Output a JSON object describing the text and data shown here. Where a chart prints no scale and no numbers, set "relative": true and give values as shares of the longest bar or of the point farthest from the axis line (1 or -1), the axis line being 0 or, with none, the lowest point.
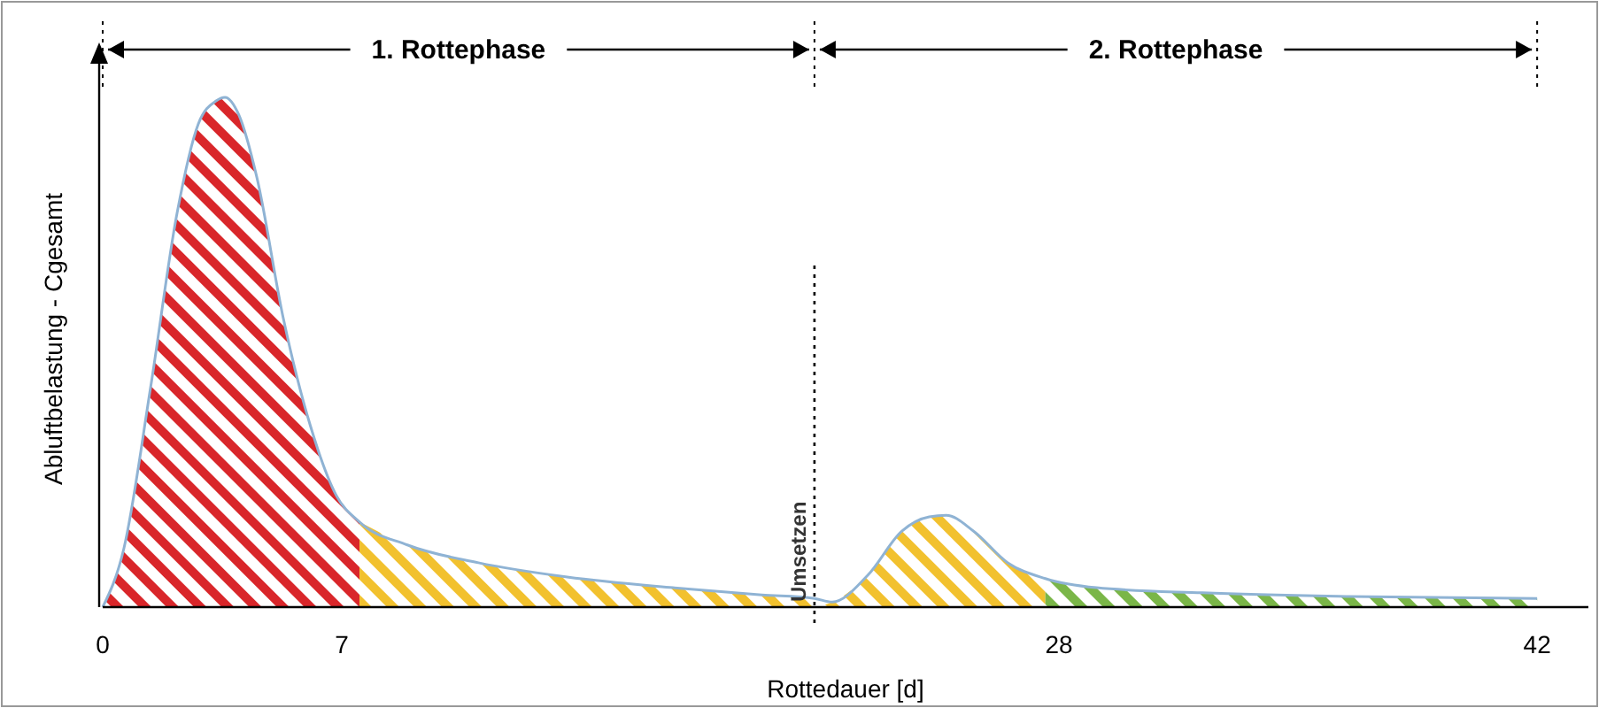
{
  "chart_data": {
    "type": "area",
    "relative": true,
    "xlabel": "Rottedauer [d]",
    "ylabel": "Abluftbelastung - Cgesamt",
    "xlim": [
      0,
      43.5
    ],
    "xticks": [
      0,
      7,
      28,
      42
    ],
    "series": [
      {
        "color": "#d9262a",
        "x": [
          0,
          0.62,
          1.4,
          2.18,
          2.8,
          3.32,
          3.58,
          3.99,
          4.51,
          5.29,
          6.07,
          6.84,
          7.52
        ],
        "values": [
          0,
          0.115,
          0.43,
          0.774,
          0.948,
          0.993,
          1,
          0.965,
          0.844,
          0.566,
          0.358,
          0.219,
          0.167
        ]
      },
      {
        "color": "#f2c12e",
        "x": [
          7.52,
          8.92,
          11.0,
          13.6,
          16.7,
          19.3,
          20.84
        ],
        "values": [
          0.167,
          0.122,
          0.087,
          0.059,
          0.038,
          0.024,
          0.017
        ]
      },
      {
        "color": "#f2c12e",
        "x": [
          20.84,
          21.36,
          22.4,
          23.4,
          24.2,
          24.7,
          25.5,
          26.5,
          27.6
        ],
        "values": [
          0,
          0.01,
          0.0625,
          0.149,
          0.177,
          0.18,
          0.149,
          0.087,
          0.056
        ]
      },
      {
        "color": "#7ab648",
        "x": [
          27.6,
          29.1,
          32.2,
          36.4,
          42
        ],
        "values": [
          0.056,
          0.038,
          0.028,
          0.021,
          0.017
        ]
      },
      {
        "type": "line",
        "color": "#8fb3d4",
        "x": [
          0,
          0.62,
          1.4,
          2.18,
          2.8,
          3.32,
          3.58,
          3.99,
          4.51,
          5.29,
          6.07,
          6.84,
          7.52,
          8.92,
          11.0,
          13.6,
          16.7,
          19.3,
          20.84,
          21.36,
          22.4,
          23.4,
          24.2,
          24.7,
          25.5,
          26.5,
          27.6,
          29.1,
          32.2,
          36.4,
          42
        ],
        "values": [
          0,
          0.115,
          0.43,
          0.774,
          0.948,
          0.993,
          1,
          0.965,
          0.844,
          0.566,
          0.358,
          0.219,
          0.167,
          0.122,
          0.087,
          0.059,
          0.038,
          0.024,
          0.017,
          0.01,
          0.0625,
          0.149,
          0.177,
          0.18,
          0.149,
          0.087,
          0.056,
          0.038,
          0.028,
          0.021,
          0.017
        ]
      }
    ],
    "ref_lines": [
      {
        "axis": "x",
        "value": 20.84,
        "label": "Umsetzen",
        "line_style": "dotted"
      }
    ],
    "annotations": [
      "1. Rottephase",
      "2. Rottephase"
    ]
  }
}
